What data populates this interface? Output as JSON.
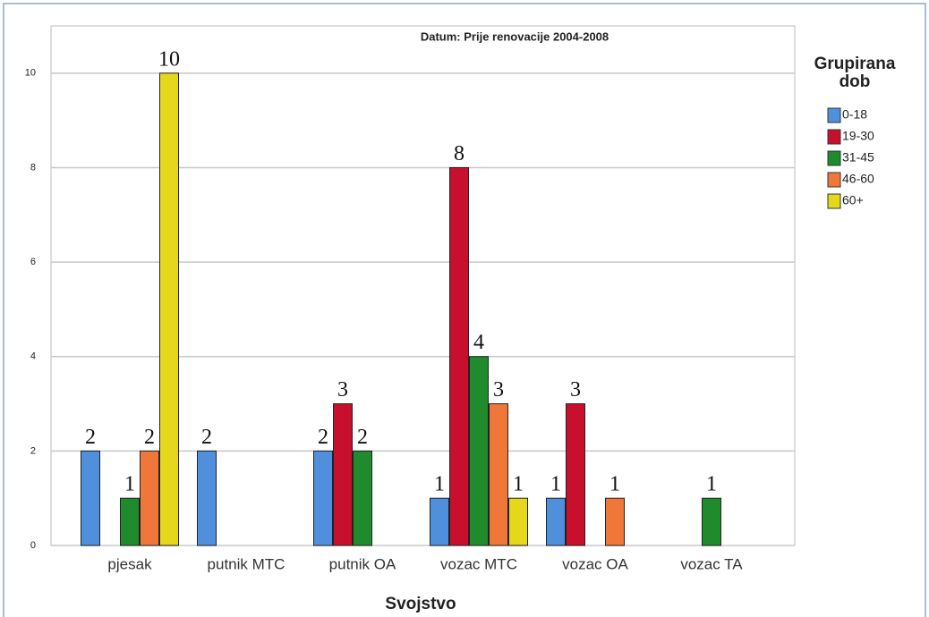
{
  "chart_data": {
    "type": "bar",
    "title": "Datum: Prije renovacije 2004-2008",
    "x_label": "Svojstvo",
    "legend_title": "Grupirana dob",
    "categories": [
      "pjesak",
      "putnik MTC",
      "putnik OA",
      "vozac MTC",
      "vozac OA",
      "vozac TA"
    ],
    "series": [
      {
        "name": "0-18",
        "color": "#4f8fdc",
        "values": [
          2,
          2,
          2,
          1,
          1,
          null
        ]
      },
      {
        "name": "19-30",
        "color": "#c8102e",
        "values": [
          null,
          null,
          3,
          8,
          3,
          null
        ]
      },
      {
        "name": "31-45",
        "color": "#1f8b2c",
        "values": [
          1,
          null,
          2,
          4,
          null,
          1
        ]
      },
      {
        "name": "46-60",
        "color": "#f0773a",
        "values": [
          2,
          null,
          null,
          3,
          1,
          null
        ]
      },
      {
        "name": "60+",
        "color": "#e5d71c",
        "values": [
          10,
          null,
          null,
          1,
          null,
          null
        ]
      }
    ],
    "ylim": [
      0,
      11
    ],
    "yticks": [
      0,
      2,
      4,
      6,
      8,
      10
    ],
    "grid": true,
    "legend": "right"
  }
}
